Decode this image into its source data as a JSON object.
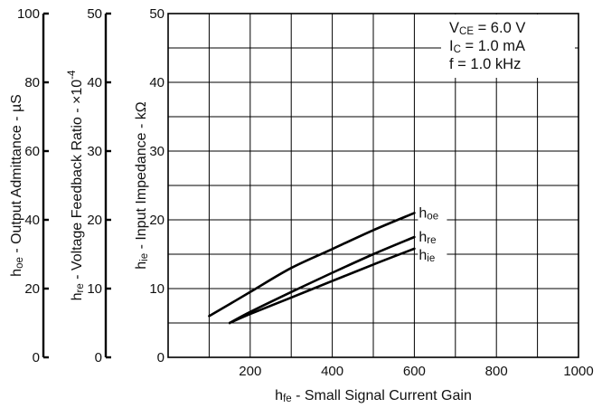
{
  "chart_data": {
    "type": "line",
    "title": "",
    "conditions": [
      {
        "sym": "V",
        "sub": "CE",
        "rest": " = 6.0 V"
      },
      {
        "sym": "I",
        "sub": "C",
        "rest": " = 1.0 mA"
      },
      {
        "sym": "f",
        "sub": "",
        "rest": " = 1.0 kHz"
      }
    ],
    "xlabel": {
      "sym": "h",
      "sub": "fe",
      "rest": " - Small Signal Current Gain"
    },
    "xlim": [
      0,
      1000
    ],
    "xticks": [
      200,
      400,
      600,
      800,
      1000
    ],
    "grid": true,
    "y_axes": [
      {
        "id": "hoe",
        "label": {
          "sym": "h",
          "sub": "oe",
          "rest": " - Output Admittance - µS"
        },
        "ylim": [
          0,
          100
        ],
        "ticks": [
          0,
          20,
          40,
          60,
          80,
          100
        ]
      },
      {
        "id": "hre",
        "label": {
          "sym": "h",
          "sub": "re",
          "rest": " - Voltage Feedback Ratio - ×10",
          "sup": "-4"
        },
        "ylim": [
          0,
          50
        ],
        "ticks": [
          0,
          10,
          20,
          30,
          40,
          50
        ]
      },
      {
        "id": "hie",
        "label": {
          "sym": "h",
          "sub": "ie",
          "rest": " - Input Impedance - kΩ"
        },
        "ylim": [
          0,
          50
        ],
        "ticks": [
          0,
          10,
          20,
          30,
          40,
          50
        ]
      }
    ],
    "series": [
      {
        "name": {
          "sym": "h",
          "sub": "oe"
        },
        "axis": "hoe",
        "x": [
          100,
          200,
          300,
          400,
          500,
          600
        ],
        "y": [
          12,
          19,
          26,
          31.5,
          37,
          42
        ]
      },
      {
        "name": {
          "sym": "h",
          "sub": "re"
        },
        "axis": "hre",
        "x": [
          150,
          200,
          300,
          400,
          500,
          600
        ],
        "y": [
          5,
          6.6,
          9.5,
          12.3,
          15,
          17.5
        ]
      },
      {
        "name": {
          "sym": "h",
          "sub": "ie"
        },
        "axis": "hie",
        "x": [
          150,
          200,
          300,
          400,
          500,
          600
        ],
        "y": [
          5,
          6.3,
          8.7,
          11.1,
          13.5,
          15.8
        ]
      }
    ]
  }
}
